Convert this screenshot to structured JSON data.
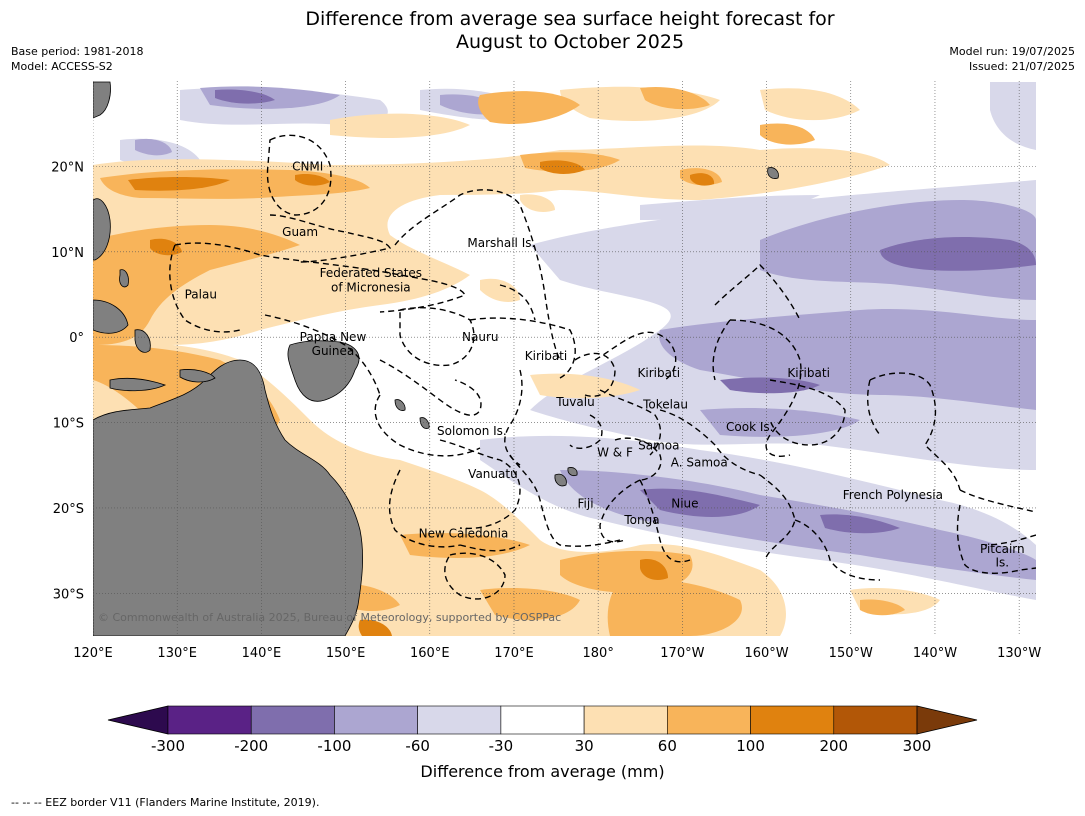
{
  "title_line1": "Difference from average sea surface height forecast for",
  "title_line2": "August to October 2025",
  "meta_left": [
    "Base period: 1981-2018",
    "Model: ACCESS-S2"
  ],
  "meta_right": [
    "Model run: 19/07/2025",
    "Issued: 21/07/2025"
  ],
  "copyright": "© Commonwealth of Australia 2025, Bureau of Meteorology, supported by COSPPac",
  "footer": "-- -- -- EEZ border V11 (Flanders Marine Institute, 2019).",
  "map": {
    "lon_range": [
      120,
      232
    ],
    "lat_range": [
      -35,
      30
    ],
    "lon_ticks": [
      "120°E",
      "130°E",
      "140°E",
      "150°E",
      "160°E",
      "170°E",
      "180°",
      "170°W",
      "160°W",
      "150°W",
      "140°W",
      "130°W"
    ],
    "lat_ticks": [
      "20°N",
      "10°N",
      "0°",
      "10°S",
      "20°S",
      "30°S"
    ],
    "labels": [
      {
        "text": "CNMI",
        "lon": 145.5,
        "lat": 20.0
      },
      {
        "text": "Guam",
        "lon": 144.6,
        "lat": 12.3
      },
      {
        "text": "Marshall Is.",
        "lon": 168.5,
        "lat": 11.0
      },
      {
        "text": "Federated States",
        "lon": 153.0,
        "lat": 7.5
      },
      {
        "text": "of Micronesia",
        "lon": 153.0,
        "lat": 5.8
      },
      {
        "text": "Palau",
        "lon": 132.8,
        "lat": 5.0
      },
      {
        "text": "Papua New",
        "lon": 148.5,
        "lat": 0.0
      },
      {
        "text": "Guinea",
        "lon": 148.5,
        "lat": -1.6
      },
      {
        "text": "Nauru",
        "lon": 166.0,
        "lat": 0.0
      },
      {
        "text": "Kiribati",
        "lon": 173.8,
        "lat": -2.2
      },
      {
        "text": "Kiribati",
        "lon": 187.2,
        "lat": -4.2
      },
      {
        "text": "Kiribati",
        "lon": 205.0,
        "lat": -4.2
      },
      {
        "text": "Tuvalu",
        "lon": 177.3,
        "lat": -7.6
      },
      {
        "text": "Tokelau",
        "lon": 188.0,
        "lat": -7.9
      },
      {
        "text": "Cook Is.",
        "lon": 198.0,
        "lat": -10.5
      },
      {
        "text": "Solomon Is.",
        "lon": 165.0,
        "lat": -11.0
      },
      {
        "text": "Samoa",
        "lon": 187.2,
        "lat": -12.7
      },
      {
        "text": "W & F",
        "lon": 182.0,
        "lat": -13.5
      },
      {
        "text": "A. Samoa",
        "lon": 192.0,
        "lat": -14.7
      },
      {
        "text": "Vanuatu",
        "lon": 167.5,
        "lat": -16.0
      },
      {
        "text": "Fiji",
        "lon": 178.5,
        "lat": -19.5
      },
      {
        "text": "Niue",
        "lon": 190.3,
        "lat": -19.5
      },
      {
        "text": "French Polynesia",
        "lon": 215.0,
        "lat": -18.5
      },
      {
        "text": "Tonga",
        "lon": 185.2,
        "lat": -21.4
      },
      {
        "text": "New Caledonia",
        "lon": 164.0,
        "lat": -23.0
      },
      {
        "text": "Pitcairn",
        "lon": 228.0,
        "lat": -24.8
      },
      {
        "text": "Is.",
        "lon": 228.0,
        "lat": -26.4
      }
    ]
  },
  "colorbar": {
    "label": "Difference from average (mm)",
    "ticks": [
      "-300",
      "-200",
      "-100",
      "-60",
      "-30",
      "30",
      "60",
      "100",
      "200",
      "300"
    ],
    "colors": [
      "#2d0a4e",
      "#5a2286",
      "#7f6ead",
      "#aca6d1",
      "#d8d8ea",
      "#ffffff",
      "#fde0b3",
      "#f8b45a",
      "#e0820f",
      "#b25707",
      "#7a3a0a"
    ],
    "land_color": "#808080"
  }
}
